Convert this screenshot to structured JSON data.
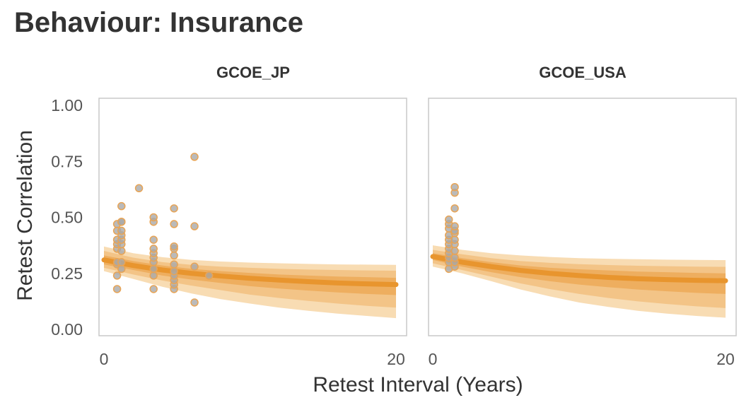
{
  "chart_data": {
    "type": "scatter",
    "title": "Behaviour: Insurance",
    "xlabel": "Retest Interval (Years)",
    "ylabel": "Retest Correlation",
    "xlim": [
      0,
      20
    ],
    "ylim": [
      0,
      1
    ],
    "xticks": [
      "0",
      "20"
    ],
    "yticks": [
      "0.00",
      "0.25",
      "0.50",
      "0.75",
      "1.00"
    ],
    "grid": false,
    "colors": {
      "point_fill": "#a9a9a9",
      "point_edge": "#e8a455",
      "band_outer": "#f8dcb3",
      "band_mid": "#f3c487",
      "band_inner": "#eeae5f",
      "line": "#e8952e",
      "frame": "#c8c8c8"
    },
    "panels": [
      {
        "name": "GCOE_JP",
        "fit": {
          "x": [
            0,
            2,
            4,
            6,
            8,
            10,
            12,
            14,
            16,
            18,
            20
          ],
          "median": [
            0.31,
            0.285,
            0.265,
            0.25,
            0.238,
            0.228,
            0.22,
            0.213,
            0.207,
            0.203,
            0.2
          ],
          "lower_50": [
            0.29,
            0.265,
            0.24,
            0.222,
            0.207,
            0.193,
            0.182,
            0.173,
            0.165,
            0.158,
            0.153
          ],
          "upper_50": [
            0.33,
            0.305,
            0.285,
            0.27,
            0.26,
            0.252,
            0.245,
            0.24,
            0.236,
            0.233,
            0.23
          ],
          "lower_80": [
            0.275,
            0.245,
            0.218,
            0.195,
            0.175,
            0.155,
            0.14,
            0.127,
            0.115,
            0.105,
            0.097
          ],
          "upper_80": [
            0.35,
            0.32,
            0.3,
            0.288,
            0.28,
            0.275,
            0.27,
            0.267,
            0.265,
            0.263,
            0.262
          ],
          "lower_95": [
            0.26,
            0.225,
            0.19,
            0.16,
            0.135,
            0.115,
            0.097,
            0.083,
            0.07,
            0.06,
            0.05
          ],
          "upper_95": [
            0.37,
            0.34,
            0.322,
            0.31,
            0.303,
            0.298,
            0.295,
            0.292,
            0.29,
            0.289,
            0.288
          ]
        },
        "points": [
          [
            0.9,
            0.18
          ],
          [
            0.9,
            0.24
          ],
          [
            0.9,
            0.29
          ],
          [
            0.9,
            0.3
          ],
          [
            0.9,
            0.36
          ],
          [
            0.9,
            0.38
          ],
          [
            0.9,
            0.4
          ],
          [
            0.9,
            0.44
          ],
          [
            0.9,
            0.47
          ],
          [
            1.2,
            0.27
          ],
          [
            1.2,
            0.3
          ],
          [
            1.2,
            0.35
          ],
          [
            1.2,
            0.38
          ],
          [
            1.2,
            0.4
          ],
          [
            1.2,
            0.42
          ],
          [
            1.2,
            0.44
          ],
          [
            1.2,
            0.48
          ],
          [
            1.2,
            0.48
          ],
          [
            1.2,
            0.55
          ],
          [
            2.4,
            0.63
          ],
          [
            3.4,
            0.18
          ],
          [
            3.4,
            0.24
          ],
          [
            3.4,
            0.27
          ],
          [
            3.4,
            0.3
          ],
          [
            3.4,
            0.32
          ],
          [
            3.4,
            0.34
          ],
          [
            3.4,
            0.36
          ],
          [
            3.4,
            0.4
          ],
          [
            3.4,
            0.48
          ],
          [
            3.4,
            0.5
          ],
          [
            4.8,
            0.18
          ],
          [
            4.8,
            0.2
          ],
          [
            4.8,
            0.22
          ],
          [
            4.8,
            0.24
          ],
          [
            4.8,
            0.26
          ],
          [
            4.8,
            0.29
          ],
          [
            4.8,
            0.33
          ],
          [
            4.8,
            0.36
          ],
          [
            4.8,
            0.37
          ],
          [
            4.8,
            0.47
          ],
          [
            4.8,
            0.54
          ],
          [
            6.2,
            0.12
          ],
          [
            6.2,
            0.28
          ],
          [
            6.2,
            0.46
          ],
          [
            6.2,
            0.77
          ],
          [
            7.2,
            0.24
          ]
        ]
      },
      {
        "name": "GCOE_USA",
        "fit": {
          "x": [
            0,
            2,
            4,
            6,
            8,
            10,
            12,
            14,
            16,
            18,
            20
          ],
          "median": [
            0.325,
            0.3,
            0.28,
            0.263,
            0.25,
            0.24,
            0.232,
            0.226,
            0.222,
            0.219,
            0.217
          ],
          "lower_50": [
            0.31,
            0.28,
            0.255,
            0.233,
            0.215,
            0.2,
            0.188,
            0.178,
            0.17,
            0.163,
            0.158
          ],
          "upper_50": [
            0.34,
            0.318,
            0.3,
            0.285,
            0.275,
            0.268,
            0.263,
            0.258,
            0.255,
            0.252,
            0.25
          ],
          "lower_80": [
            0.295,
            0.265,
            0.235,
            0.205,
            0.18,
            0.158,
            0.14,
            0.125,
            0.113,
            0.103,
            0.095
          ],
          "upper_80": [
            0.355,
            0.335,
            0.318,
            0.305,
            0.297,
            0.291,
            0.287,
            0.284,
            0.282,
            0.28,
            0.279
          ],
          "lower_95": [
            0.28,
            0.25,
            0.215,
            0.178,
            0.147,
            0.12,
            0.1,
            0.083,
            0.07,
            0.06,
            0.052
          ],
          "upper_95": [
            0.375,
            0.355,
            0.34,
            0.33,
            0.323,
            0.318,
            0.315,
            0.313,
            0.311,
            0.31,
            0.309
          ]
        },
        "points": [
          [
            1.1,
            0.27
          ],
          [
            1.1,
            0.3
          ],
          [
            1.1,
            0.32
          ],
          [
            1.1,
            0.34
          ],
          [
            1.1,
            0.36
          ],
          [
            1.1,
            0.38
          ],
          [
            1.1,
            0.4
          ],
          [
            1.1,
            0.42
          ],
          [
            1.1,
            0.45
          ],
          [
            1.1,
            0.47
          ],
          [
            1.1,
            0.49
          ],
          [
            1.5,
            0.28
          ],
          [
            1.5,
            0.3
          ],
          [
            1.5,
            0.32
          ],
          [
            1.5,
            0.35
          ],
          [
            1.5,
            0.38
          ],
          [
            1.5,
            0.4
          ],
          [
            1.5,
            0.43
          ],
          [
            1.5,
            0.44
          ],
          [
            1.5,
            0.46
          ],
          [
            1.5,
            0.54
          ],
          [
            1.5,
            0.61
          ],
          [
            1.5,
            0.635
          ]
        ]
      }
    ]
  }
}
